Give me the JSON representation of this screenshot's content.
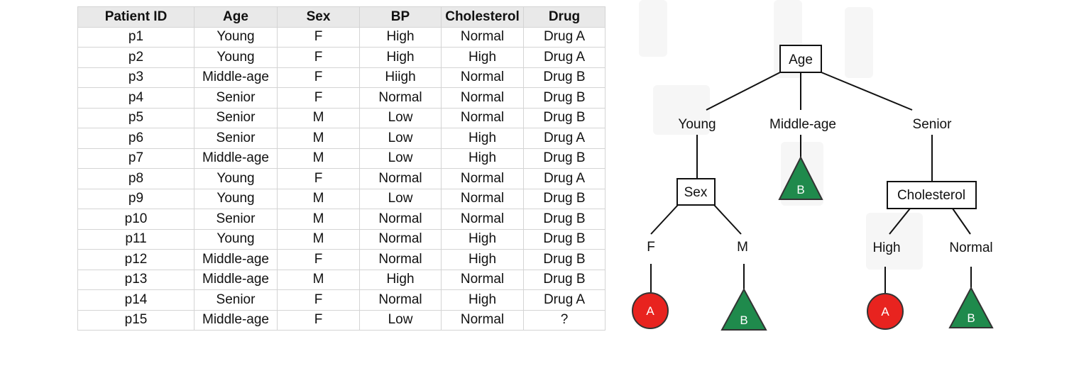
{
  "table": {
    "columns": [
      "Patient ID",
      "Age",
      "Sex",
      "BP",
      "Cholesterol",
      "Drug"
    ],
    "rows": [
      [
        "p1",
        "Young",
        "F",
        "High",
        "Normal",
        "Drug A"
      ],
      [
        "p2",
        "Young",
        "F",
        "High",
        "High",
        "Drug A"
      ],
      [
        "p3",
        "Middle-age",
        "F",
        "Hiigh",
        "Normal",
        "Drug B"
      ],
      [
        "p4",
        "Senior",
        "F",
        "Normal",
        "Normal",
        "Drug B"
      ],
      [
        "p5",
        "Senior",
        "M",
        "Low",
        "Normal",
        "Drug B"
      ],
      [
        "p6",
        "Senior",
        "M",
        "Low",
        "High",
        "Drug A"
      ],
      [
        "p7",
        "Middle-age",
        "M",
        "Low",
        "High",
        "Drug B"
      ],
      [
        "p8",
        "Young",
        "F",
        "Normal",
        "Normal",
        "Drug A"
      ],
      [
        "p9",
        "Young",
        "M",
        "Low",
        "Normal",
        "Drug B"
      ],
      [
        "p10",
        "Senior",
        "M",
        "Normal",
        "Normal",
        "Drug B"
      ],
      [
        "p11",
        "Young",
        "M",
        "Normal",
        "High",
        "Drug B"
      ],
      [
        "p12",
        "Middle-age",
        "F",
        "Normal",
        "High",
        "Drug B"
      ],
      [
        "p13",
        "Middle-age",
        "M",
        "High",
        "Normal",
        "Drug B"
      ],
      [
        "p14",
        "Senior",
        "F",
        "Normal",
        "High",
        "Drug A"
      ],
      [
        "p15",
        "Middle-age",
        "F",
        "Low",
        "Normal",
        "?"
      ]
    ]
  },
  "tree": {
    "root": "Age",
    "age_branches": {
      "young": "Young",
      "middle": "Middle-age",
      "senior": "Senior"
    },
    "sex_node": "Sex",
    "sex_branches": {
      "f": "F",
      "m": "M"
    },
    "cholesterol_node": "Cholesterol",
    "cholesterol_branches": {
      "high": "High",
      "normal": "Normal"
    },
    "leaf_labels": {
      "drug_a": "A",
      "drug_b": "B"
    },
    "colors": {
      "drug_a": "#e8231f",
      "drug_b": "#1f8a4c",
      "outline": "#333333"
    }
  }
}
